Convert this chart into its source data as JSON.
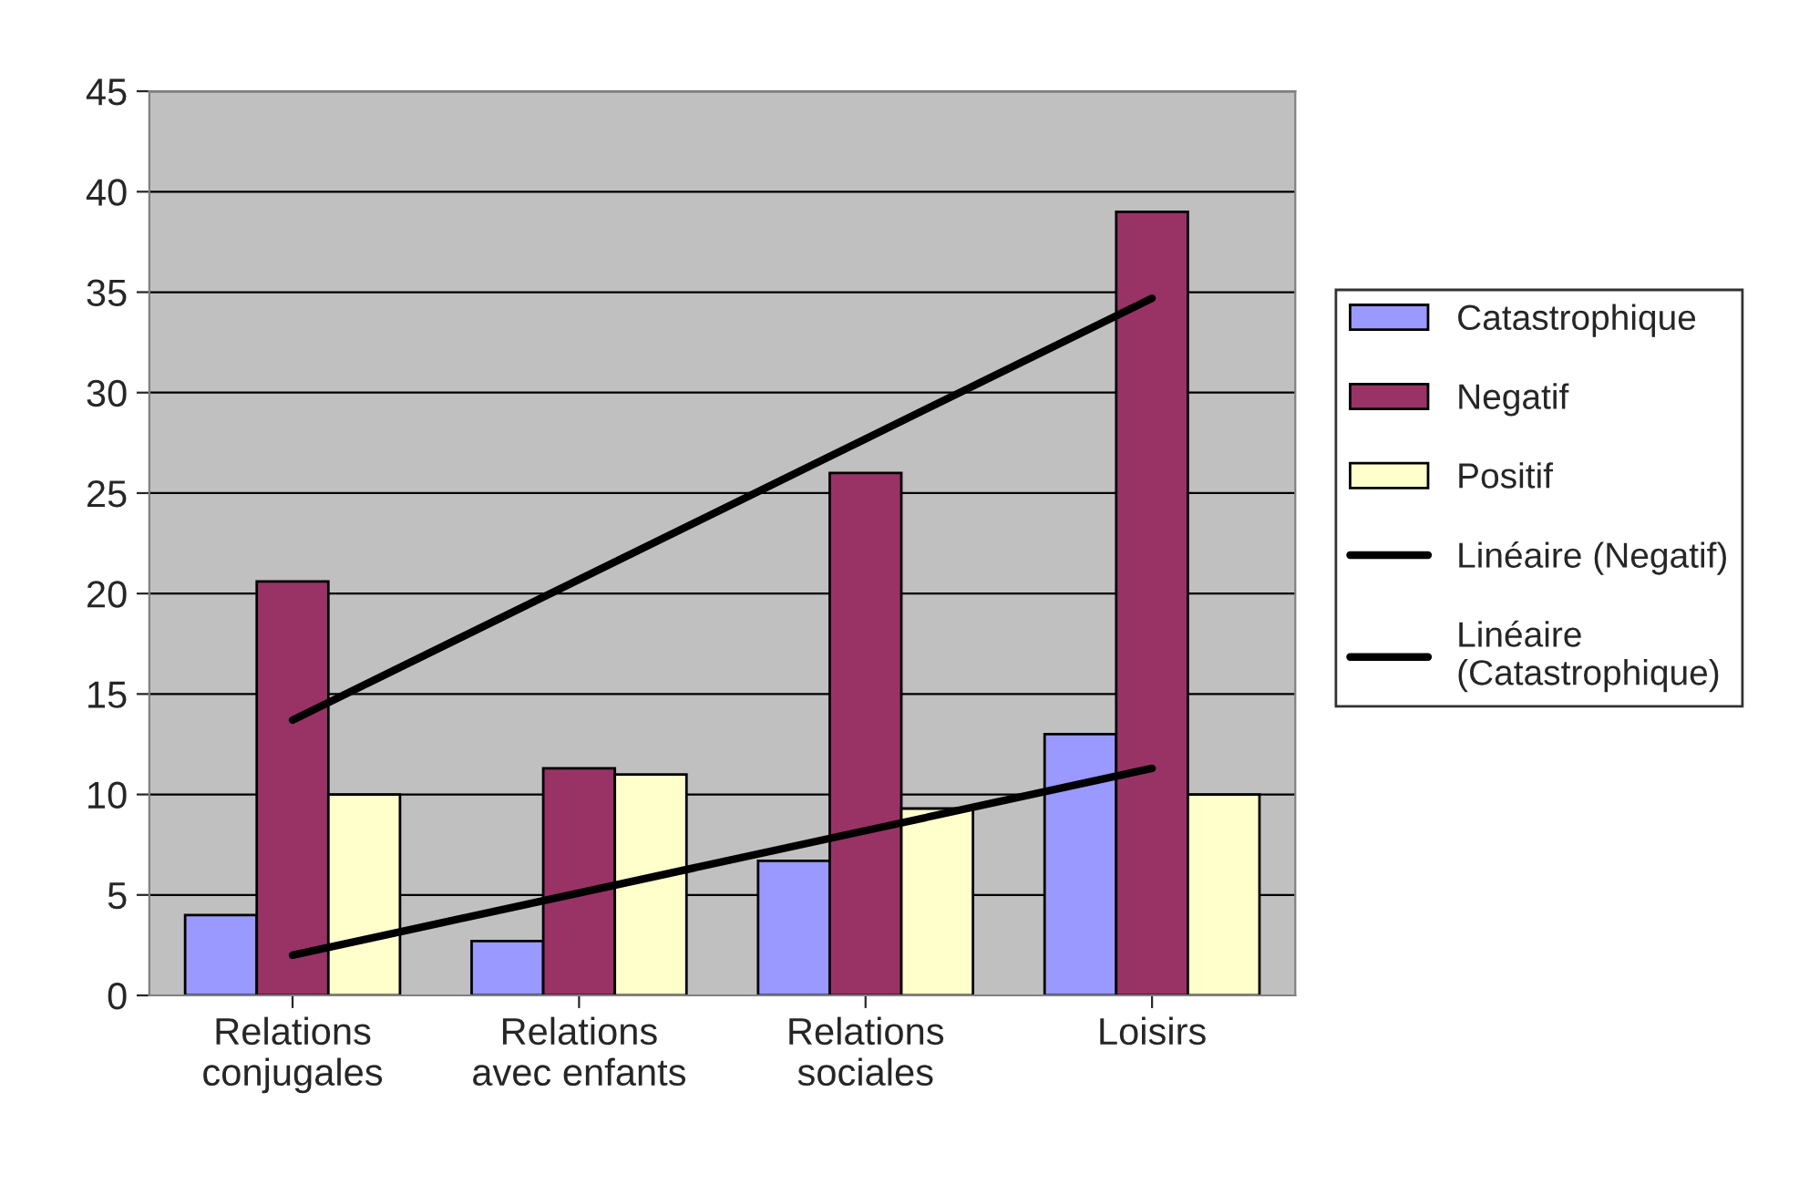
{
  "chart_data": {
    "type": "bar",
    "categories": [
      "Relations\nconjugales",
      "Relations\navec enfants",
      "Relations\nsociales",
      "Loisirs"
    ],
    "series": [
      {
        "name": "Catastrophique",
        "color": "#9999ff",
        "values": [
          4,
          2.7,
          6.7,
          13
        ]
      },
      {
        "name": "Negatif",
        "color": "#993366",
        "values": [
          20.6,
          11.3,
          26,
          39
        ]
      },
      {
        "name": "Positif",
        "color": "#ffffcc",
        "values": [
          10,
          11,
          9.3,
          10
        ]
      },
      {
        "name": "Linéaire (Negatif)",
        "type": "line",
        "color": "#000000",
        "values": [
          13.7,
          20.7,
          27.7,
          34.7
        ]
      },
      {
        "name": "Linéaire\n(Catastrophique)",
        "type": "line",
        "color": "#000000",
        "values": [
          2.0,
          5.1,
          8.2,
          11.3
        ]
      }
    ],
    "ylim": [
      0,
      45
    ],
    "yticks": [
      0,
      5,
      10,
      15,
      20,
      25,
      30,
      35,
      40,
      45
    ],
    "grid": "y",
    "legend": "right"
  }
}
